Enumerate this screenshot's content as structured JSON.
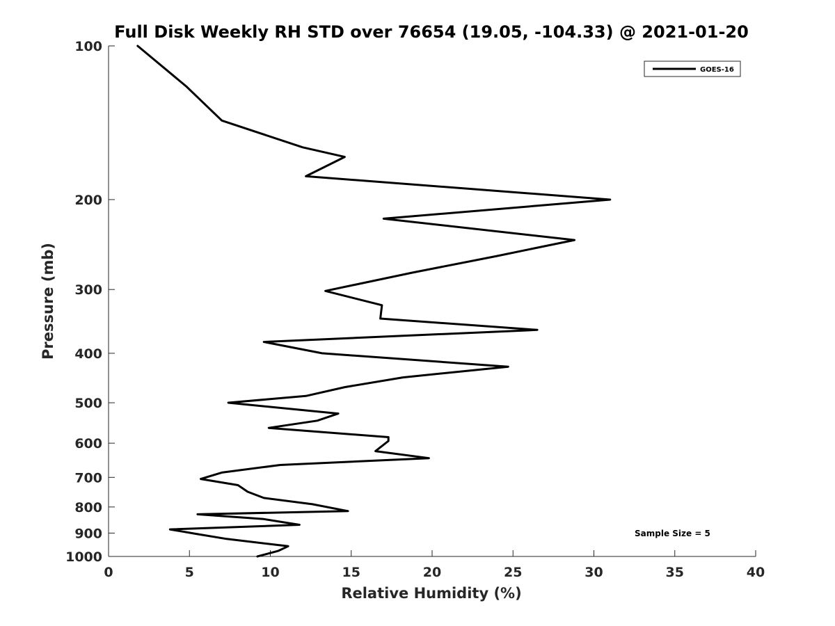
{
  "chart_data": {
    "type": "line",
    "title": "Full Disk Weekly RH STD over 76654 (19.05, -104.33) @ 2021-01-20",
    "xlabel": "Relative Humidity (%)",
    "ylabel": "Pressure (mb)",
    "xlim": [
      0,
      40
    ],
    "ylim": [
      100,
      1000
    ],
    "yscale": "log",
    "y_reversed": true,
    "grid": false,
    "legend_position": "top-right",
    "x_ticks": [
      0,
      5,
      10,
      15,
      20,
      25,
      30,
      35,
      40
    ],
    "x_tick_labels": [
      "0",
      "5",
      "10",
      "15",
      "20",
      "25",
      "30",
      "35",
      "40"
    ],
    "y_ticks": [
      100,
      200,
      300,
      400,
      500,
      600,
      700,
      800,
      900,
      1000
    ],
    "y_tick_labels": [
      "100",
      "200",
      "300",
      "400",
      "500",
      "600",
      "700",
      "800",
      "900",
      "1000"
    ],
    "series": [
      {
        "name": "GOES-16",
        "color": "#000000",
        "x": [
          1.8,
          4.8,
          7.0,
          12.0,
          14.6,
          12.2,
          31.0,
          17.0,
          28.8,
          24.0,
          18.8,
          13.4,
          16.9,
          16.8,
          26.5,
          9.6,
          13.2,
          24.7,
          18.2,
          14.6,
          12.2,
          7.4,
          14.2,
          12.9,
          9.9,
          17.3,
          17.3,
          16.5,
          19.8,
          10.6,
          7.0,
          5.7,
          8.0,
          8.6,
          9.6,
          12.6,
          14.8,
          5.5,
          9.6,
          11.8,
          3.8,
          5.4,
          7.3,
          11.1,
          10.5,
          9.2
        ],
        "y": [
          100,
          120,
          140,
          158,
          165,
          180,
          200,
          218,
          240,
          258,
          278,
          302,
          322,
          342,
          360,
          380,
          400,
          425,
          446,
          466,
          485,
          500,
          525,
          542,
          560,
          584,
          594,
          622,
          642,
          662,
          685,
          705,
          725,
          747,
          768,
          790,
          815,
          827,
          845,
          867,
          885,
          903,
          924,
          955,
          975,
          1000
        ]
      }
    ],
    "annotations": [
      "Sample Size = 5"
    ]
  }
}
